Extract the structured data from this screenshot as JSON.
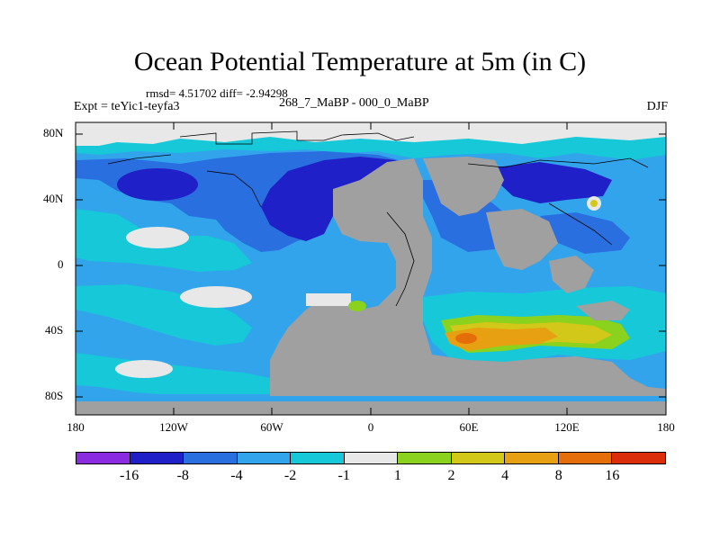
{
  "title": "Ocean Potential Temperature at 5m (in C)",
  "stats": "rmsd= 4.51702 diff= -2.94298",
  "experiment": "Expt = teYic1-teyfa3",
  "period": "268_7_MaBP - 000_0_MaBP",
  "season": "DJF",
  "lat_labels": [
    "80N",
    "40N",
    "0",
    "40S",
    "80S"
  ],
  "lon_labels": [
    "180",
    "120W",
    "60W",
    "0",
    "60E",
    "120E",
    "180"
  ],
  "colorbar": {
    "colors": [
      "#8a2be2",
      "#2020c8",
      "#2a6fe0",
      "#32a4ec",
      "#16c8d8",
      "#e8e8e8",
      "#8ad21e",
      "#d2c81a",
      "#e6a012",
      "#e66e0a",
      "#dc2d0a"
    ],
    "labels": [
      "-16",
      "-8",
      "-4",
      "-2",
      "-1",
      "1",
      "2",
      "4",
      "8",
      "16"
    ]
  },
  "legend": {
    "ice": "#e8e8e8",
    "land": "#a0a0a0"
  }
}
